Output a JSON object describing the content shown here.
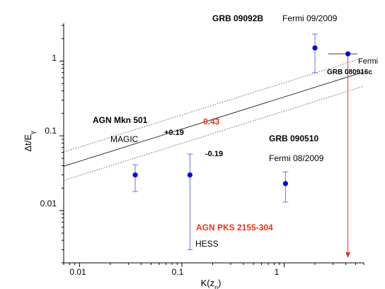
{
  "chart_data": {
    "type": "scatter",
    "x_scale": "log",
    "y_scale": "log",
    "xlim": [
      0.007,
      6
    ],
    "ylim": [
      0.002,
      3.2
    ],
    "xlabel": "K(z_n)",
    "ylabel": "Δt/E_γ",
    "x_ticks": [
      {
        "value": 0.01,
        "label": "0.01"
      },
      {
        "value": 0.1,
        "label": "0.1"
      },
      {
        "value": 1,
        "label": "1"
      }
    ],
    "y_ticks": [
      {
        "value": 0.01,
        "label": "0.01"
      },
      {
        "value": 0.1,
        "label": "0.1"
      },
      {
        "value": 1,
        "label": "1"
      }
    ],
    "points": [
      {
        "x": 0.035,
        "y": 0.03,
        "y_low": 0.018,
        "y_high": 0.041
      },
      {
        "x": 0.12,
        "y": 0.03,
        "y_low": 0.003,
        "y_high": 0.057
      },
      {
        "x": 1.03,
        "y": 0.023,
        "y_low": 0.013,
        "y_high": 0.033
      },
      {
        "x": 2.0,
        "y": 1.5,
        "y_low": 0.7,
        "y_high": 2.3
      },
      {
        "x": 4.2,
        "y": 1.25,
        "x_low": 2.7,
        "x_high": 5.2,
        "upper_limit": true
      }
    ],
    "fit": {
      "slope": 0.43,
      "slope_label": "0.43"
    },
    "band": {
      "upper_label": "+0.19",
      "lower_label": "-0.19",
      "offset": 0.19
    },
    "annotations": {
      "mkn501_name": "AGN Mkn 501",
      "mkn501_inst": "MAGIC",
      "pks_name": "AGN PKS 2155-304",
      "pks_inst": "HESS",
      "grb090510_name": "GRB 090510",
      "grb090510_inst": "Fermi 08/2009",
      "grb09092b_name": "GRB 09092B",
      "grb09092b_inst": "Fermi 09/2009",
      "grb080916c_inst": "Fermi",
      "grb080916c_name": "GRB 080916c"
    },
    "colors": {
      "points": "#0000ee",
      "errorbars": "#6f6fe8",
      "arrow": "#dd3333",
      "highlight": "#ee3311",
      "fit_line": "#222222",
      "band": "#555555"
    }
  }
}
